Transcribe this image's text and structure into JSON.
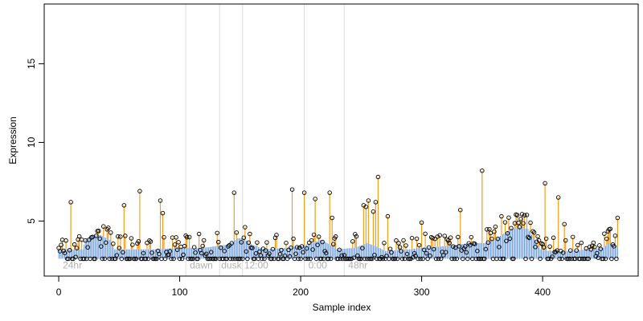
{
  "chart_data": {
    "type": "scatter",
    "title": "",
    "xlabel": "Sample index",
    "ylabel": "Expression",
    "xlim": [
      -12,
      479
    ],
    "ylim": [
      1.5,
      18.8
    ],
    "x_ticks": [
      0,
      100,
      200,
      300,
      400
    ],
    "y_ticks": [
      5,
      10,
      15
    ],
    "grid": false,
    "legend": "none",
    "colors": {
      "stem": "#f0a020",
      "baseline": "#6a9ad8",
      "point_stroke": "#000000",
      "divider": "#dddddd",
      "annotation": "#b0b0b0"
    },
    "baseline_value": 2.6,
    "baseline_profile": [
      [
        0,
        3.2
      ],
      [
        20,
        3.2
      ],
      [
        22,
        3.8
      ],
      [
        28,
        4.1
      ],
      [
        35,
        4.1
      ],
      [
        42,
        3.8
      ],
      [
        46,
        3.2
      ],
      [
        60,
        3.2
      ],
      [
        80,
        3.2
      ],
      [
        100,
        3.3
      ],
      [
        120,
        3.3
      ],
      [
        140,
        3.5
      ],
      [
        148,
        3.9
      ],
      [
        152,
        3.9
      ],
      [
        160,
        3.5
      ],
      [
        170,
        3.2
      ],
      [
        190,
        3.3
      ],
      [
        200,
        3.4
      ],
      [
        210,
        3.6
      ],
      [
        216,
        3.8
      ],
      [
        222,
        3.6
      ],
      [
        230,
        3.2
      ],
      [
        245,
        3.3
      ],
      [
        255,
        3.6
      ],
      [
        262,
        3.4
      ],
      [
        270,
        3.1
      ],
      [
        290,
        3.2
      ],
      [
        300,
        3.3
      ],
      [
        320,
        3.4
      ],
      [
        340,
        3.6
      ],
      [
        352,
        3.6
      ],
      [
        360,
        3.8
      ],
      [
        368,
        4.2
      ],
      [
        375,
        4.5
      ],
      [
        380,
        4.6
      ],
      [
        388,
        4.5
      ],
      [
        392,
        4.0
      ],
      [
        395,
        3.6
      ],
      [
        398,
        3.2
      ],
      [
        405,
        3.1
      ],
      [
        420,
        3.1
      ],
      [
        440,
        3.2
      ],
      [
        450,
        3.3
      ],
      [
        455,
        3.6
      ],
      [
        460,
        3.5
      ],
      [
        463,
        3.3
      ]
    ],
    "dividers": [
      105,
      133,
      152,
      203,
      236
    ],
    "annotations": [
      {
        "x": 2,
        "text": "24hr"
      },
      {
        "x": 107,
        "text": "dawn"
      },
      {
        "x": 133,
        "text": "dusk"
      },
      {
        "x": 152,
        "text": "12:00"
      },
      {
        "x": 205,
        "text": "0:00"
      },
      {
        "x": 238,
        "text": "48hr"
      }
    ],
    "peaks": [
      {
        "x": 3,
        "y": 3.8
      },
      {
        "x": 10,
        "y": 6.2
      },
      {
        "x": 54,
        "y": 6.0
      },
      {
        "x": 67,
        "y": 6.9
      },
      {
        "x": 84,
        "y": 6.3
      },
      {
        "x": 86,
        "y": 5.5
      },
      {
        "x": 145,
        "y": 6.8
      },
      {
        "x": 193,
        "y": 7.0
      },
      {
        "x": 203,
        "y": 6.8
      },
      {
        "x": 212,
        "y": 6.4
      },
      {
        "x": 224,
        "y": 6.8
      },
      {
        "x": 226,
        "y": 5.2
      },
      {
        "x": 252,
        "y": 6.0
      },
      {
        "x": 254,
        "y": 5.9
      },
      {
        "x": 256,
        "y": 6.3
      },
      {
        "x": 260,
        "y": 5.6
      },
      {
        "x": 262,
        "y": 6.2
      },
      {
        "x": 264,
        "y": 7.8
      },
      {
        "x": 272,
        "y": 5.3
      },
      {
        "x": 300,
        "y": 4.9
      },
      {
        "x": 332,
        "y": 5.7
      },
      {
        "x": 350,
        "y": 8.2
      },
      {
        "x": 366,
        "y": 5.3
      },
      {
        "x": 402,
        "y": 7.4
      },
      {
        "x": 413,
        "y": 6.5
      },
      {
        "x": 418,
        "y": 4.8
      },
      {
        "x": 456,
        "y": 4.5
      },
      {
        "x": 462,
        "y": 5.2
      }
    ],
    "n_points": 463,
    "point_rule": "values[i] = max(baseline_value, profile(i) + noise); peaks override the listed indices"
  }
}
